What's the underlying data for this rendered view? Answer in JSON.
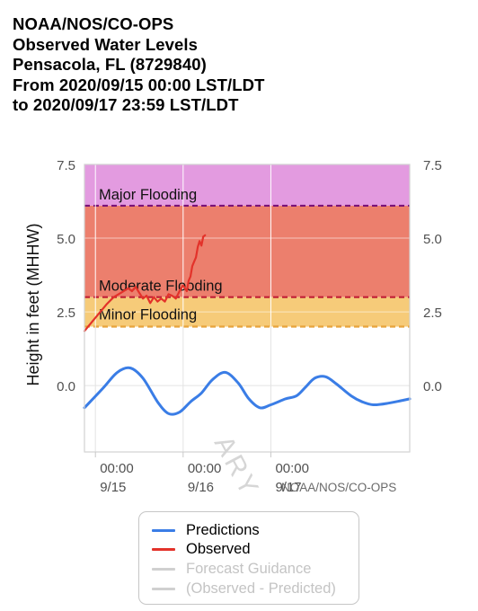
{
  "header": {
    "line1": "NOAA/NOS/CO-OPS",
    "line2": "Observed Water Levels",
    "line3": "Pensacola, FL (8729840)",
    "line4": "From 2020/09/15 00:00 LST/LDT",
    "line5": "to 2020/09/17 23:59 LST/LDT"
  },
  "chart_data": {
    "type": "line",
    "ylabel": "Height in feet (MHHW)",
    "ylim": [
      -2.25,
      7.5
    ],
    "xlim_hours": [
      -3,
      86
    ],
    "y_ticks": [
      "7.5",
      "5.0",
      "2.5",
      "0.0"
    ],
    "y_tick_values": [
      7.5,
      5.0,
      2.5,
      0.0
    ],
    "x_ticks": [
      {
        "hour": 0,
        "time": "00:00",
        "date": "9/15"
      },
      {
        "hour": 24,
        "time": "00:00",
        "date": "9/16"
      },
      {
        "hour": 48,
        "time": "00:00",
        "date": "9/17"
      }
    ],
    "bands": [
      {
        "name": "Major Flooding",
        "from": 6.1,
        "to": 7.5,
        "color": "#e39be0",
        "line_color": "#7a1278"
      },
      {
        "name": "Moderate Flooding",
        "from": 3.0,
        "to": 6.1,
        "color": "#ec7f6d",
        "line_color": "#c01f36"
      },
      {
        "name": "Minor Flooding",
        "from": 2.0,
        "to": 3.0,
        "color": "#f6cb79",
        "line_color": "#e8a43c"
      }
    ],
    "series": [
      {
        "name": "Predictions",
        "color": "#3a7de6",
        "x": [
          -3,
          2,
          6,
          9.5,
          13,
          17,
          20,
          23,
          26,
          29,
          32,
          35.5,
          39,
          42,
          45,
          48,
          52,
          55,
          57.5,
          60,
          63,
          66,
          70,
          73,
          76,
          80,
          84,
          86
        ],
        "y": [
          -0.75,
          -0.1,
          0.45,
          0.6,
          0.25,
          -0.55,
          -0.95,
          -0.9,
          -0.55,
          -0.25,
          0.2,
          0.45,
          0.1,
          -0.45,
          -0.75,
          -0.65,
          -0.45,
          -0.35,
          -0.05,
          0.25,
          0.3,
          0.05,
          -0.35,
          -0.55,
          -0.65,
          -0.6,
          -0.5,
          -0.45
        ]
      },
      {
        "name": "Observed",
        "color": "#e3322a",
        "x": [
          -3,
          -1,
          1,
          3,
          5,
          7,
          9,
          10,
          11,
          12,
          13,
          14,
          15,
          16,
          17,
          18,
          19,
          20,
          21,
          22,
          23,
          24,
          25,
          25.5,
          26,
          26.5,
          27,
          27.5,
          28,
          28.5,
          29,
          29.5,
          30
        ],
        "y": [
          1.85,
          2.15,
          2.45,
          2.75,
          3.0,
          3.15,
          3.3,
          3.2,
          3.35,
          3.15,
          2.95,
          3.05,
          2.8,
          3.0,
          2.85,
          2.95,
          2.85,
          3.1,
          3.05,
          2.95,
          3.2,
          3.4,
          3.2,
          3.55,
          3.7,
          4.05,
          4.2,
          4.35,
          4.7,
          4.9,
          4.75,
          5.05,
          5.1
        ]
      }
    ]
  },
  "watermark": {
    "source": "NOAA/NOS/CO-OPS",
    "bg1": "ARY"
  },
  "legend": {
    "items": [
      {
        "label": "Predictions",
        "color": "#3a7de6"
      },
      {
        "label": "Observed",
        "color": "#e3322a"
      },
      {
        "label": "Forecast Guidance",
        "color": "#cfcfcf"
      },
      {
        "label": "(Observed - Predicted)",
        "color": "#cfcfcf"
      }
    ]
  }
}
